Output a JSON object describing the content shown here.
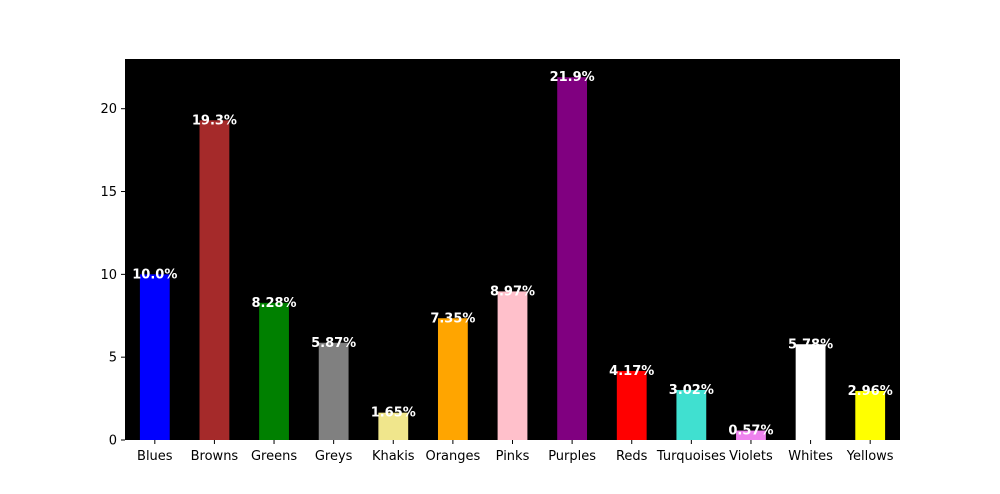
{
  "chart_data": {
    "type": "bar",
    "title": "",
    "xlabel": "",
    "ylabel": "",
    "categories": [
      "Blues",
      "Browns",
      "Greens",
      "Greys",
      "Khakis",
      "Oranges",
      "Pinks",
      "Purples",
      "Reds",
      "Turquoises",
      "Violets",
      "Whites",
      "Yellows"
    ],
    "values": [
      10.0,
      19.3,
      8.28,
      5.87,
      1.65,
      7.35,
      8.97,
      21.9,
      4.17,
      3.02,
      0.57,
      5.78,
      2.96
    ],
    "data_labels": [
      "10.0%",
      "19.3%",
      "8.28%",
      "5.87%",
      "1.65%",
      "7.35%",
      "8.97%",
      "21.9%",
      "4.17%",
      "3.02%",
      "0.57%",
      "5.78%",
      "2.96%"
    ],
    "bar_colors": [
      "#0000ff",
      "#a52a2a",
      "#008000",
      "#808080",
      "#f0e68c",
      "#ffa500",
      "#ffc0cb",
      "#800080",
      "#ff0000",
      "#40e0d0",
      "#ee82ee",
      "#ffffff",
      "#ffff00"
    ],
    "plot_background": "#000000",
    "ylim": [
      0,
      23
    ],
    "yticks": [
      0,
      5,
      10,
      15,
      20
    ],
    "grid": false,
    "legend": "none"
  }
}
